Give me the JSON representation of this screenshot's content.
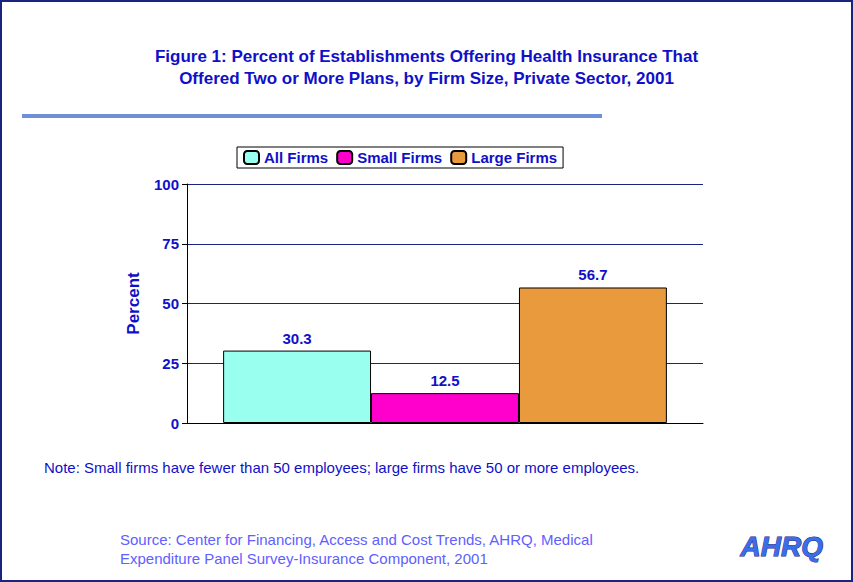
{
  "chart_data": {
    "type": "bar",
    "title": "Figure 1: Percent of Establishments Offering Health Insurance That\nOffered Two or More Plans, by Firm Size, Private Sector, 2001",
    "y_label": "Percent",
    "categories": [
      null
    ],
    "series": [
      {
        "name": "All Firms",
        "color": "#99ffee",
        "values": [
          30.3
        ]
      },
      {
        "name": "Small Firms",
        "color": "#ff00cc",
        "values": [
          12.5
        ]
      },
      {
        "name": "Large Firms",
        "color": "#e89a3c",
        "values": [
          56.7
        ]
      }
    ],
    "ylim": [
      0,
      100
    ],
    "yticks": [
      0,
      25,
      50,
      75,
      100
    ],
    "grid": true,
    "legend": "top",
    "data_labels": true,
    "note": "Note: Small firms have fewer than 50 employees; large firms have 50 or more employees.",
    "source": "Source: Center for Financing, Access and Cost Trends, AHRQ, Medical\nExpenditure Panel Survey-Insurance Component, 2001",
    "logo": "AHRQ"
  }
}
